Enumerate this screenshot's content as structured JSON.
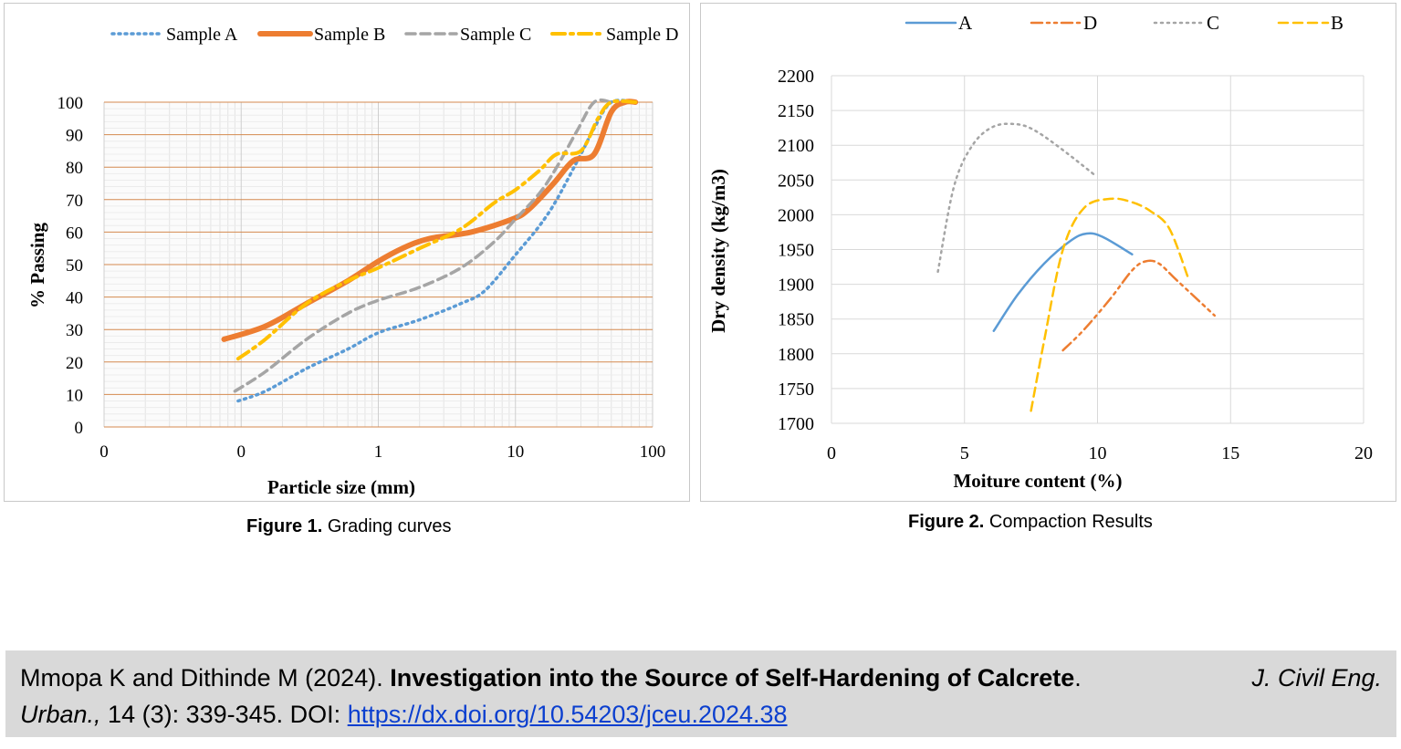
{
  "figure1": {
    "caption_label": "Figure 1.",
    "caption_text": " Grading curves",
    "chart_data": {
      "type": "line",
      "title": "",
      "xlabel": "Particle size (mm)",
      "ylabel": "% Passing",
      "xscale": "log",
      "xlim": [
        0.01,
        100
      ],
      "ylim": [
        0,
        100
      ],
      "xticks": [
        0.01,
        0.1,
        1,
        10,
        100
      ],
      "xtick_labels": [
        "0",
        "0",
        "1",
        "10",
        "100"
      ],
      "yticks": [
        0,
        10,
        20,
        30,
        40,
        50,
        60,
        70,
        80,
        90,
        100
      ],
      "ytick_labels": [
        "0",
        "10",
        "20",
        "30",
        "40",
        "50",
        "60",
        "70",
        "80",
        "90",
        "100"
      ],
      "legend": "top",
      "grid": true,
      "series": [
        {
          "name": "Sample A",
          "color": "#5b9bd5",
          "style": "dotted",
          "width": 3.5,
          "x": [
            0.095,
            0.15,
            0.3,
            0.6,
            1.0,
            2.0,
            4.0,
            6.0,
            10,
            15,
            20,
            30,
            37.5,
            50,
            75
          ],
          "y": [
            8,
            11,
            18,
            24,
            29,
            33,
            38,
            42,
            53,
            62,
            70,
            84,
            92,
            100,
            100
          ]
        },
        {
          "name": "Sample B",
          "color": "#ed7d31",
          "style": "solid",
          "width": 6,
          "x": [
            0.075,
            0.15,
            0.3,
            0.6,
            1.0,
            1.5,
            2.36,
            4.75,
            9.5,
            12.5,
            19,
            26.5,
            37.5,
            50,
            63,
            75
          ],
          "y": [
            27,
            31,
            38,
            45,
            51,
            55,
            58,
            60,
            64,
            67,
            75,
            82,
            84,
            97,
            100,
            100
          ]
        },
        {
          "name": "Sample C",
          "color": "#a5a5a5",
          "style": "dashed",
          "width": 3.5,
          "x": [
            0.09,
            0.15,
            0.3,
            0.6,
            1.0,
            2.0,
            4.0,
            7.0,
            10,
            15,
            20,
            28,
            37.5,
            50
          ],
          "y": [
            11,
            17,
            27,
            35,
            39,
            43,
            49,
            57,
            64,
            72,
            80,
            91,
            100,
            100
          ]
        },
        {
          "name": "Sample D",
          "color": "#ffc000",
          "style": "dashdot",
          "width": 4,
          "x": [
            0.095,
            0.15,
            0.3,
            0.6,
            1.0,
            2.0,
            4.0,
            7.0,
            10,
            15,
            20,
            30,
            40,
            50,
            75
          ],
          "y": [
            21,
            27,
            38,
            45,
            49,
            55,
            61,
            69,
            73,
            79,
            84,
            85,
            95,
            100,
            100
          ]
        }
      ]
    }
  },
  "figure2": {
    "caption_label": "Figure 2.",
    "caption_text": " Compaction Results",
    "chart_data": {
      "type": "line",
      "title": "",
      "xlabel": "Moiture content (%)",
      "ylabel": "Dry density (kg/m3)",
      "xlim": [
        0,
        20
      ],
      "ylim": [
        1700,
        2200
      ],
      "xticks": [
        0,
        5,
        10,
        15,
        20
      ],
      "xtick_labels": [
        "0",
        "5",
        "10",
        "15",
        "20"
      ],
      "yticks": [
        1700,
        1750,
        1800,
        1850,
        1900,
        1950,
        2000,
        2050,
        2100,
        2150,
        2200
      ],
      "ytick_labels": [
        "1700",
        "1750",
        "1800",
        "1850",
        "1900",
        "1950",
        "2000",
        "2050",
        "2100",
        "2150",
        "2200"
      ],
      "legend": "top",
      "grid": true,
      "series": [
        {
          "name": "A",
          "color": "#5b9bd5",
          "style": "solid",
          "width": 2.5,
          "x": [
            6.1,
            7.0,
            8.0,
            9.0,
            9.6,
            10.2,
            11.3
          ],
          "y": [
            1833,
            1885,
            1930,
            1963,
            1973,
            1968,
            1943
          ]
        },
        {
          "name": "D",
          "color": "#ed7d31",
          "style": "dashdotdot",
          "width": 2.5,
          "x": [
            8.7,
            9.5,
            10.5,
            11.3,
            11.8,
            12.3,
            13.0,
            14.4
          ],
          "y": [
            1805,
            1835,
            1880,
            1920,
            1933,
            1930,
            1905,
            1855
          ]
        },
        {
          "name": "C",
          "color": "#a5a5a5",
          "style": "dotted",
          "width": 2.5,
          "x": [
            4.0,
            4.6,
            5.3,
            6.1,
            7.0,
            7.7,
            8.7,
            9.9
          ],
          "y": [
            1918,
            2040,
            2100,
            2127,
            2130,
            2120,
            2093,
            2057
          ]
        },
        {
          "name": "B",
          "color": "#ffc000",
          "style": "dashed",
          "width": 2.5,
          "x": [
            7.5,
            8.0,
            8.7,
            9.5,
            10.5,
            11.3,
            12.0,
            12.7,
            13.4
          ],
          "y": [
            1718,
            1820,
            1950,
            2010,
            2023,
            2018,
            2005,
            1980,
            1910
          ]
        }
      ]
    }
  },
  "citation": {
    "authors": "Mmopa K and Dithinde M (2024). ",
    "title": "Investigation into the Source of Self-Hardening of Calcrete",
    "after_title": ". ",
    "journal_a": "J. Civil Eng.",
    "journal_b": "Urban.,",
    "details": " 14 (3): 339-345. DOI: ",
    "doi_link": "https://dx.doi.org/10.54203/jceu.2024.38"
  }
}
